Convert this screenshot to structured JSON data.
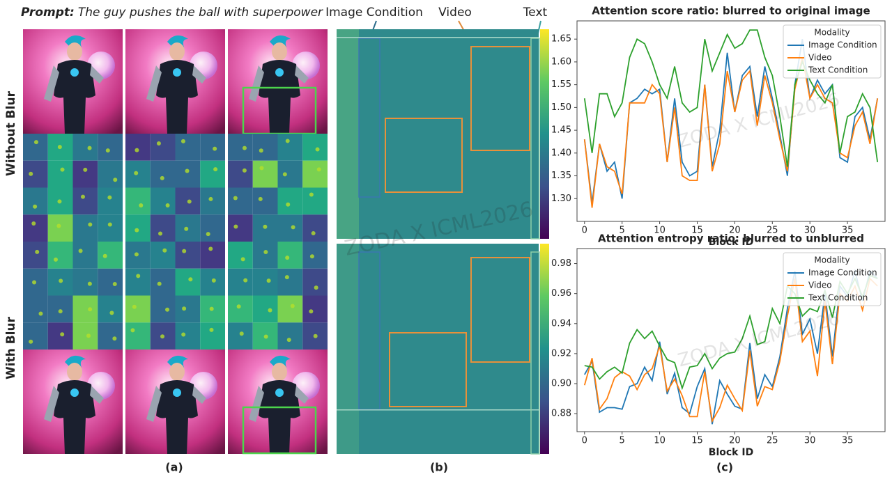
{
  "panel_a": {
    "prompt_label": "Prompt:",
    "prompt": "The guy pushes the ball with superpower",
    "row_labels": [
      "Without Blur",
      "With Blur"
    ],
    "caption": "(a)"
  },
  "panel_b": {
    "labels": [
      "Image Condition",
      "Video",
      "Text"
    ],
    "caption": "(b)"
  },
  "panel_c": {
    "caption": "(c)"
  },
  "watermark": "ZODA X ICML2026",
  "chart_data": [
    {
      "type": "line",
      "title": "Attention score ratio: blurred to original image",
      "x_label": "Block ID",
      "x": [
        0,
        1,
        2,
        3,
        4,
        5,
        6,
        7,
        8,
        9,
        10,
        11,
        12,
        13,
        14,
        15,
        16,
        17,
        18,
        19,
        20,
        21,
        22,
        23,
        24,
        25,
        26,
        27,
        28,
        29,
        30,
        31,
        32,
        33,
        34,
        35,
        36,
        37,
        38,
        39
      ],
      "xlim": [
        -1,
        40
      ],
      "xticks": [
        0,
        5,
        10,
        15,
        20,
        25,
        30,
        35
      ],
      "ylim": [
        1.25,
        1.69
      ],
      "yticks": [
        {
          "value": 1.3,
          "label": "1.30"
        },
        1.35,
        {
          "value": 1.4,
          "label": "1.40"
        },
        1.45,
        {
          "value": 1.5,
          "label": "1.50"
        },
        1.55,
        {
          "value": 1.6,
          "label": "1.60"
        },
        1.65
      ],
      "legend_title": "Modality",
      "legend": "upper right",
      "series": [
        {
          "name": "Image Condition",
          "color": "#1f77b4",
          "values": [
            1.43,
            1.29,
            1.42,
            1.36,
            1.38,
            1.3,
            1.51,
            1.52,
            1.54,
            1.53,
            1.54,
            1.38,
            1.52,
            1.38,
            1.35,
            1.36,
            1.55,
            1.37,
            1.45,
            1.62,
            1.49,
            1.57,
            1.59,
            1.48,
            1.59,
            1.52,
            1.44,
            1.35,
            1.55,
            1.65,
            1.52,
            1.56,
            1.53,
            1.55,
            1.39,
            1.38,
            1.48,
            1.5,
            1.43,
            1.52
          ]
        },
        {
          "name": "Video",
          "color": "#ff7f0e",
          "values": [
            1.43,
            1.28,
            1.42,
            1.37,
            1.36,
            1.31,
            1.51,
            1.51,
            1.51,
            1.55,
            1.53,
            1.38,
            1.5,
            1.35,
            1.34,
            1.34,
            1.55,
            1.36,
            1.42,
            1.58,
            1.49,
            1.56,
            1.58,
            1.46,
            1.57,
            1.51,
            1.43,
            1.36,
            1.54,
            1.61,
            1.52,
            1.55,
            1.52,
            1.51,
            1.4,
            1.39,
            1.46,
            1.49,
            1.42,
            1.52
          ]
        },
        {
          "name": "Text Condition",
          "color": "#2ca02c",
          "values": [
            1.52,
            1.4,
            1.53,
            1.53,
            1.48,
            1.51,
            1.61,
            1.65,
            1.64,
            1.6,
            1.55,
            1.52,
            1.59,
            1.51,
            1.49,
            1.5,
            1.65,
            1.58,
            1.62,
            1.66,
            1.63,
            1.64,
            1.67,
            1.67,
            1.61,
            1.57,
            1.48,
            1.37,
            1.55,
            1.6,
            1.56,
            1.53,
            1.51,
            1.55,
            1.4,
            1.48,
            1.49,
            1.53,
            1.5,
            1.38
          ]
        }
      ]
    },
    {
      "type": "line",
      "title": "Attention entropy ratio: blurred to unblurred",
      "x_label": "Block ID",
      "x": [
        0,
        1,
        2,
        3,
        4,
        5,
        6,
        7,
        8,
        9,
        10,
        11,
        12,
        13,
        14,
        15,
        16,
        17,
        18,
        19,
        20,
        21,
        22,
        23,
        24,
        25,
        26,
        27,
        28,
        29,
        30,
        31,
        32,
        33,
        34,
        35,
        36,
        37,
        38,
        39
      ],
      "xlim": [
        -1,
        40
      ],
      "xticks": [
        0,
        5,
        10,
        15,
        20,
        25,
        30,
        35
      ],
      "ylim": [
        0.868,
        0.99
      ],
      "yticks": [
        0.88,
        {
          "value": 0.9,
          "label": "0.90"
        },
        0.92,
        0.94,
        0.96,
        0.98
      ],
      "legend_title": "Modality",
      "legend": "upper right",
      "series": [
        {
          "name": "Image Condition",
          "color": "#1f77b4",
          "values": [
            0.906,
            0.915,
            0.881,
            0.884,
            0.884,
            0.883,
            0.898,
            0.9,
            0.911,
            0.902,
            0.928,
            0.893,
            0.907,
            0.884,
            0.88,
            0.898,
            0.91,
            0.873,
            0.902,
            0.893,
            0.885,
            0.883,
            0.927,
            0.89,
            0.906,
            0.898,
            0.918,
            0.95,
            0.975,
            0.933,
            0.943,
            0.92,
            0.96,
            0.918,
            0.965,
            0.958,
            0.975,
            0.955,
            0.975,
            0.97
          ]
        },
        {
          "name": "Video",
          "color": "#ff7f0e",
          "values": [
            0.899,
            0.917,
            0.883,
            0.89,
            0.904,
            0.908,
            0.905,
            0.896,
            0.906,
            0.91,
            0.925,
            0.895,
            0.903,
            0.892,
            0.878,
            0.878,
            0.908,
            0.875,
            0.884,
            0.899,
            0.89,
            0.882,
            0.922,
            0.885,
            0.898,
            0.896,
            0.915,
            0.945,
            0.97,
            0.928,
            0.935,
            0.905,
            0.955,
            0.913,
            0.96,
            0.955,
            0.965,
            0.949,
            0.97,
            0.965
          ]
        },
        {
          "name": "Text Condition",
          "color": "#2ca02c",
          "values": [
            0.912,
            0.911,
            0.903,
            0.908,
            0.911,
            0.907,
            0.927,
            0.936,
            0.93,
            0.935,
            0.925,
            0.916,
            0.914,
            0.897,
            0.911,
            0.912,
            0.92,
            0.91,
            0.917,
            0.92,
            0.921,
            0.93,
            0.945,
            0.926,
            0.928,
            0.95,
            0.94,
            0.965,
            0.96,
            0.945,
            0.95,
            0.948,
            0.962,
            0.944,
            0.968,
            0.96,
            0.97,
            0.958,
            0.972,
            0.97
          ]
        }
      ]
    }
  ]
}
